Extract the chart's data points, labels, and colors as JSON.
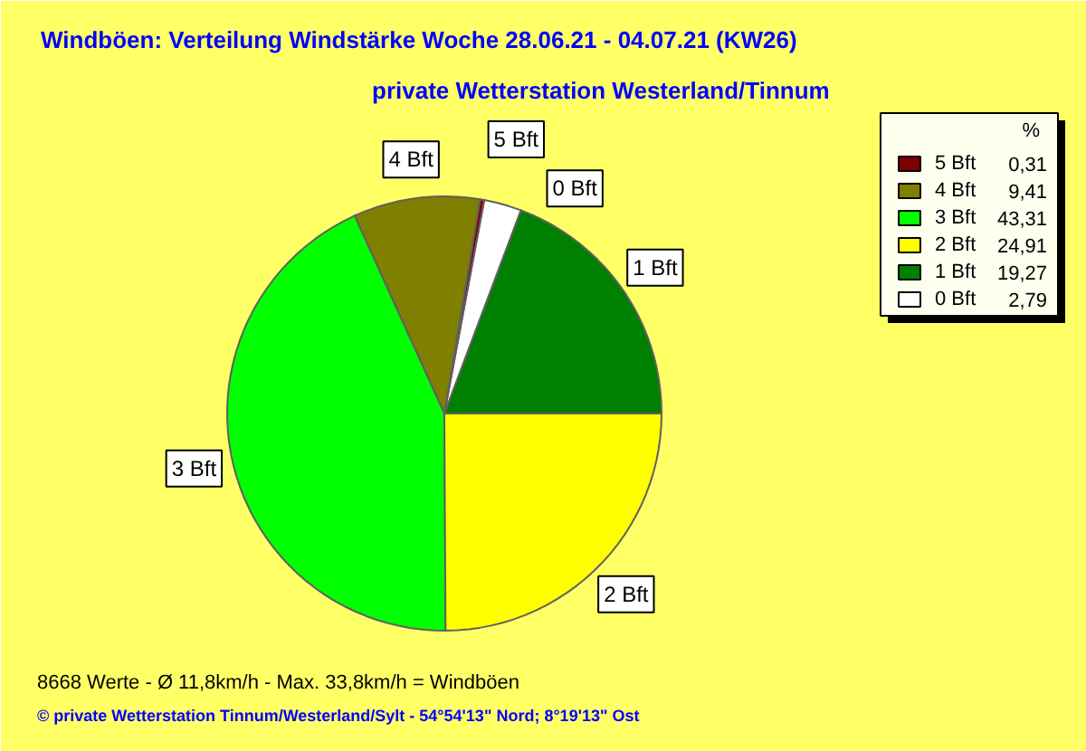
{
  "chart_data": {
    "type": "pie",
    "title": "Windböen: Verteilung Windstärke  Woche 28.06.21 - 04.07.21 (KW26)",
    "subtitle": "private Wetterstation Westerland/Tinnum",
    "categories": [
      "5 Bft",
      "4 Bft",
      "3 Bft",
      "2 Bft",
      "1 Bft",
      "0 Bft"
    ],
    "values": [
      0.31,
      9.41,
      43.31,
      24.91,
      19.27,
      2.79
    ],
    "colors": [
      "#800000",
      "#808000",
      "#00ff00",
      "#ffff00",
      "#008000",
      "#ffffff"
    ],
    "value_labels": [
      "0,31",
      "9,41",
      "43,31",
      "24,91",
      "19,27",
      "2,79"
    ],
    "legend": "top right",
    "legend_title": "%",
    "data_labels": true,
    "annotations": [
      "8668 Werte   -   Ø 11,8km/h  -  Max. 33,8km/h = Windböen",
      "© private Wetterstation Tinnum/Westerland/Sylt   -   54°54'13\" Nord; 8°19'13\" Ost"
    ]
  }
}
